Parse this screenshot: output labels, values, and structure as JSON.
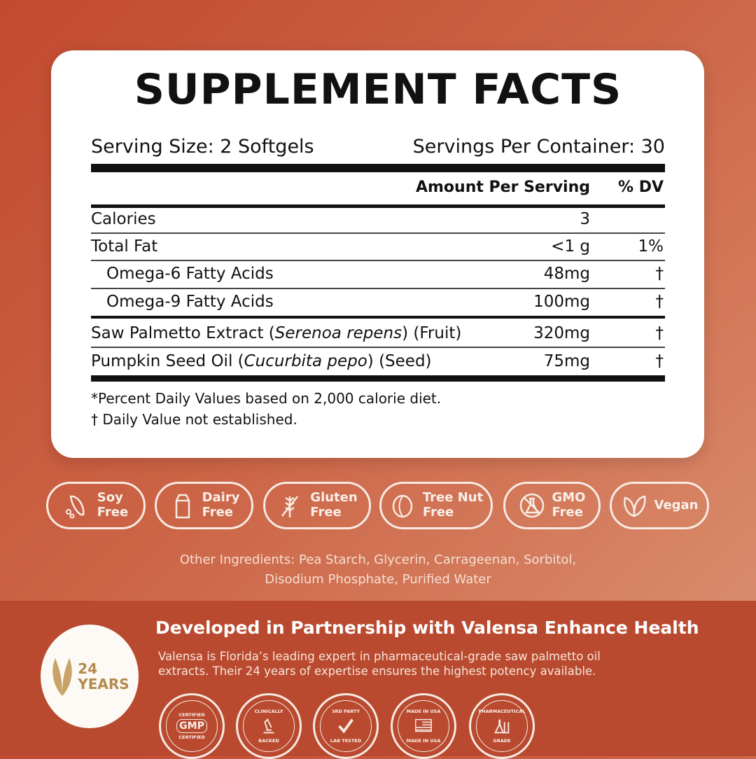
{
  "facts": {
    "title": "SUPPLEMENT FACTS",
    "serving_size": "Serving Size: 2 Softgels",
    "servings_per_container": "Servings Per Container: 30",
    "header_amount": "Amount Per Serving",
    "header_dv": "% DV",
    "rows": [
      {
        "name": "Calories",
        "amount": "3",
        "dv": ""
      },
      {
        "name": "Total Fat",
        "amount": "<1 g",
        "dv": "1%"
      },
      {
        "name": "Omega-6 Fatty Acids",
        "amount": "48mg",
        "dv": "†"
      },
      {
        "name": "Omega-9 Fatty Acids",
        "amount": "100mg",
        "dv": "†"
      },
      {
        "name_pre": "Saw Palmetto Extract (",
        "name_italic": "Serenoa repens",
        "name_post": ") (Fruit)",
        "amount": "320mg",
        "dv": "†"
      },
      {
        "name_pre": "Pumpkin Seed Oil (",
        "name_italic": "Cucurbita pepo",
        "name_post": ") (Seed)",
        "amount": "75mg",
        "dv": "†"
      }
    ],
    "footnote1": "*Percent Daily Values based on 2,000 calorie diet.",
    "footnote2": "† Daily Value not established."
  },
  "badges": [
    {
      "icon": "soybean-icon",
      "l1": "Soy",
      "l2": "Free"
    },
    {
      "icon": "milk-carton-icon",
      "l1": "Dairy",
      "l2": "Free"
    },
    {
      "icon": "wheat-icon",
      "l1": "Gluten",
      "l2": "Free"
    },
    {
      "icon": "nut-icon",
      "l1": "Tree Nut",
      "l2": "Free"
    },
    {
      "icon": "flask-icon",
      "l1": "GMO",
      "l2": "Free"
    },
    {
      "icon": "leaf-icon",
      "l1": "Vegan",
      "l2": ""
    }
  ],
  "other_ingredients": {
    "line1": "Other Ingredients: Pea Starch, Glycerin, Carrageenan, Sorbitol,",
    "line2": "Disodium Phosphate, Purified Water"
  },
  "seal": {
    "num": "24",
    "word": "YEARS"
  },
  "partnership": {
    "title": "Developed in Partnership with Valensa Enhance Health",
    "line1": "Valensa is Florida’s leading expert in pharmaceutical-grade saw palmetto oil",
    "line2": "extracts. Their 24 years of expertise ensures the highest potency available."
  },
  "certs": [
    {
      "icon": "gmp-icon",
      "top": "CERTIFIED",
      "mid": "GMP",
      "bottom": "CERTIFIED"
    },
    {
      "icon": "microscope-icon",
      "top": "CLINICALLY",
      "mid": "",
      "bottom": "BACKED"
    },
    {
      "icon": "checkmark-icon",
      "top": "3RD PARTY",
      "mid": "",
      "bottom": "LAB TESTED"
    },
    {
      "icon": "us-flag-icon",
      "top": "MADE IN USA",
      "mid": "",
      "bottom": "MADE IN USA"
    },
    {
      "icon": "lab-flask-icon",
      "top": "PHARMACEUTICAL",
      "mid": "",
      "bottom": "GRADE"
    }
  ],
  "colors": {
    "background": "#c9573a",
    "band": "#b94a2f",
    "panel": "#ffffff",
    "gold": "#b48a4d"
  }
}
